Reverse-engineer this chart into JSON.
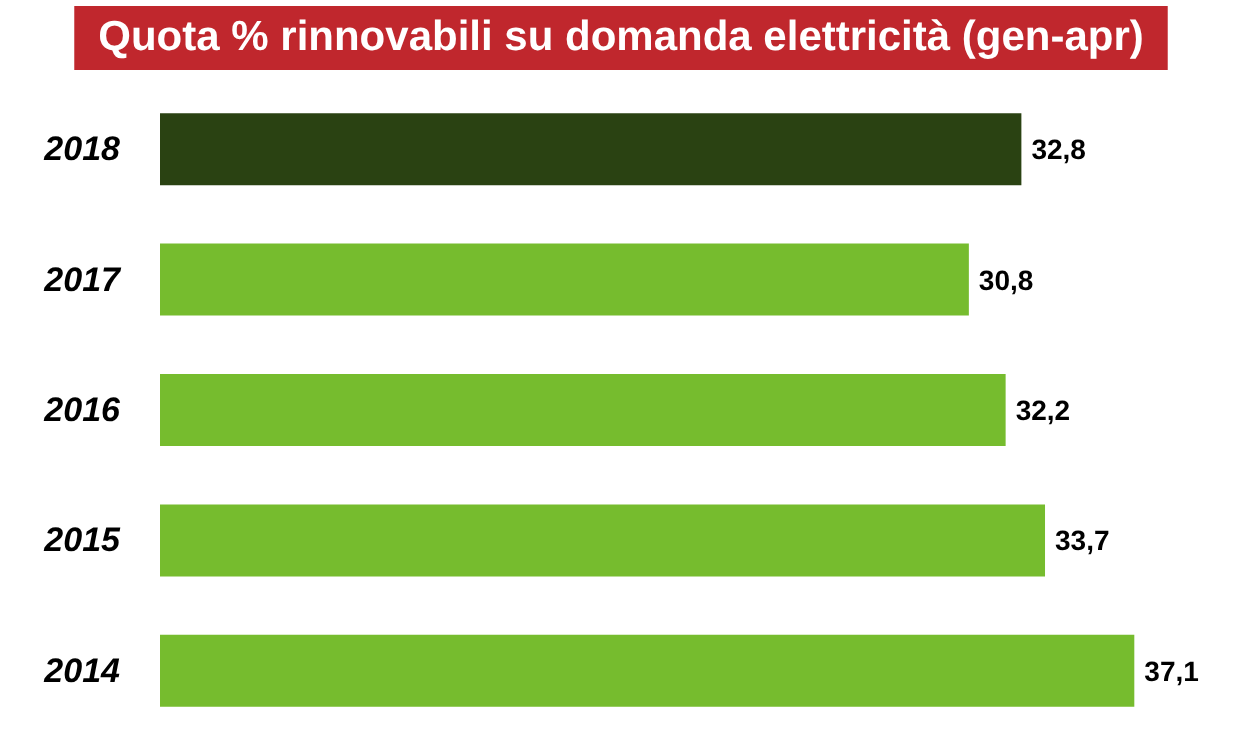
{
  "chart_data": {
    "type": "bar",
    "orientation": "horizontal",
    "title": "Quota % rinnovabili su domanda elettricità (gen-apr)",
    "categories": [
      "2018",
      "2017",
      "2016",
      "2015",
      "2014"
    ],
    "values": [
      32.8,
      30.8,
      32.2,
      33.7,
      37.1
    ],
    "colors": [
      "#2a4212",
      "#76bc2e",
      "#76bc2e",
      "#76bc2e",
      "#76bc2e"
    ],
    "value_labels": [
      "32,8",
      "30,8",
      "32,2",
      "33,7",
      "37,1"
    ]
  }
}
